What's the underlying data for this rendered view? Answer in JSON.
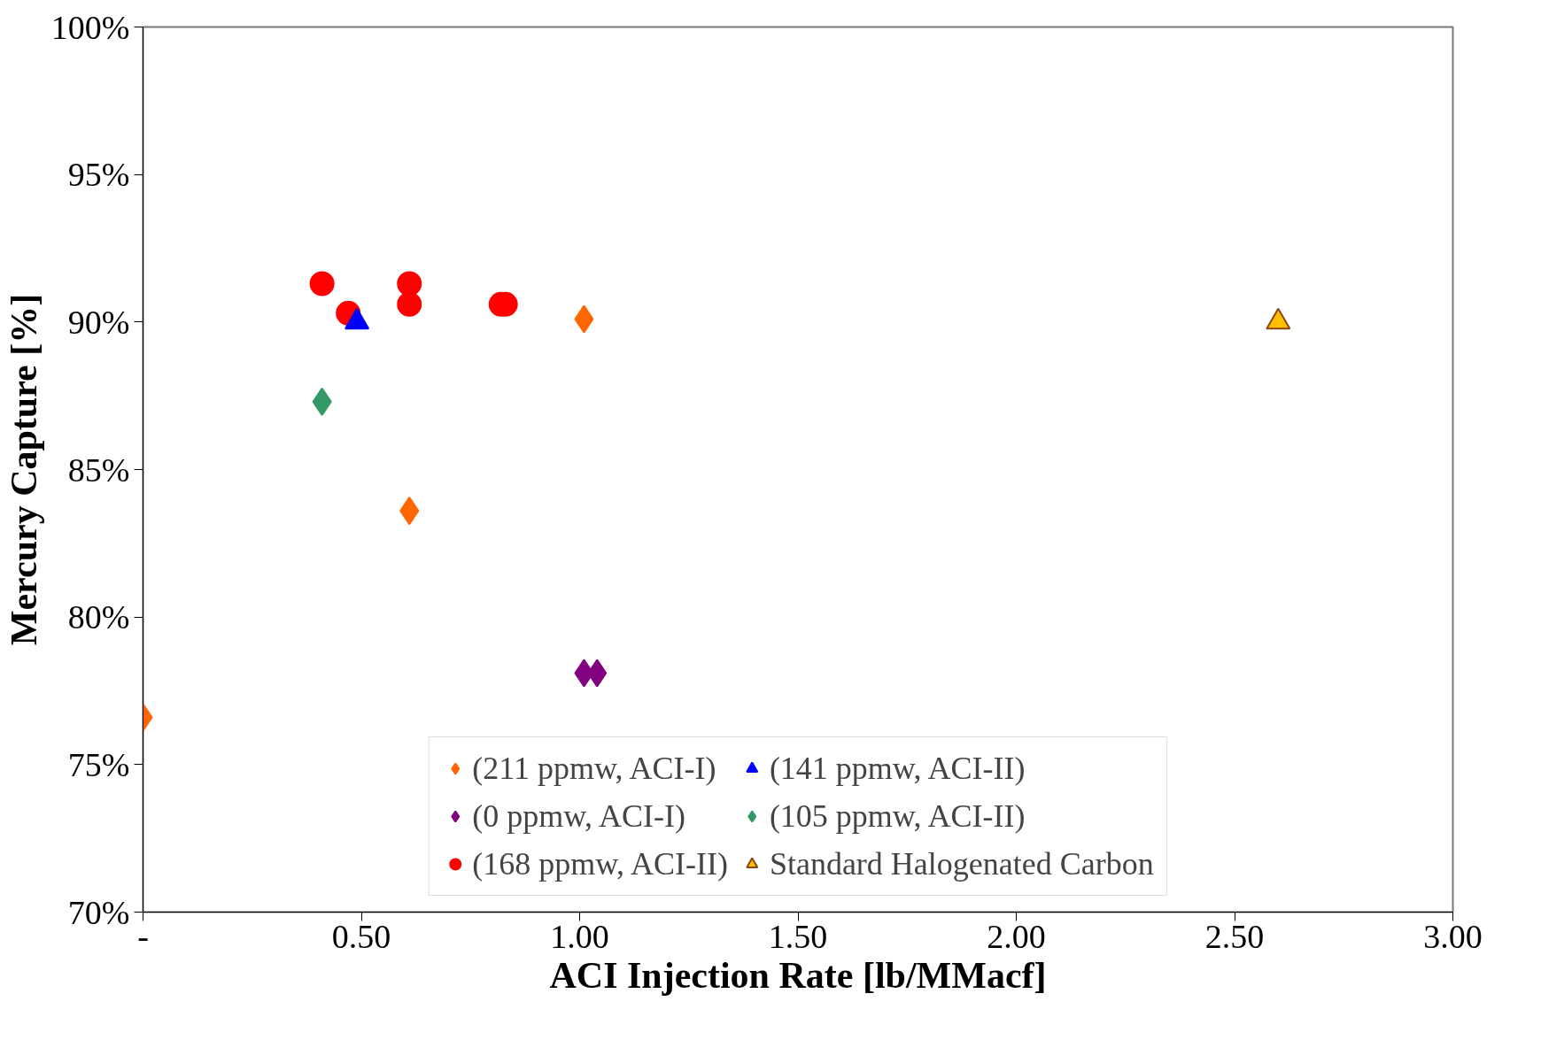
{
  "chart_data": {
    "type": "scatter",
    "xlabel": "ACI Injection Rate [lb/MMacf]",
    "ylabel": "Mercury Capture [%]",
    "xlim": [
      0,
      3
    ],
    "ylim": [
      70,
      100
    ],
    "xticks": [
      {
        "value": 0,
        "label": "-"
      },
      {
        "value": 0.5,
        "label": "0.50"
      },
      {
        "value": 1,
        "label": "1.00"
      },
      {
        "value": 1.5,
        "label": "1.50"
      },
      {
        "value": 2,
        "label": "2.00"
      },
      {
        "value": 2.5,
        "label": "2.50"
      },
      {
        "value": 3,
        "label": "3.00"
      }
    ],
    "yticks": [
      {
        "value": 70,
        "label": "70%"
      },
      {
        "value": 75,
        "label": "75%"
      },
      {
        "value": 80,
        "label": "80%"
      },
      {
        "value": 85,
        "label": "85%"
      },
      {
        "value": 90,
        "label": "90%"
      },
      {
        "value": 95,
        "label": "95%"
      },
      {
        "value": 100,
        "label": "100%"
      }
    ],
    "grid": false,
    "legend": "bottom",
    "series": [
      {
        "name": "(211 ppmw, ACI-I)",
        "color": "#ff6600",
        "marker": "diamond",
        "x": [
          0,
          0.61,
          1.01
        ],
        "values": [
          76.6,
          83.6,
          90.1
        ]
      },
      {
        "name": "(0 ppmw, ACI-I)",
        "color": "#800080",
        "marker": "diamond",
        "x": [
          1.01,
          1.04
        ],
        "values": [
          78.1,
          78.1
        ]
      },
      {
        "name": "(168 ppmw, ACI-II)",
        "color": "#ff0000",
        "marker": "circle",
        "x": [
          0.41,
          0.47,
          0.61,
          0.61,
          0.82,
          0.83
        ],
        "values": [
          91.3,
          90.3,
          91.3,
          90.6,
          90.6,
          90.6
        ]
      },
      {
        "name": "(141 ppmw, ACI-II)",
        "color": "#0000ff",
        "marker": "triangle",
        "x": [
          0.49
        ],
        "values": [
          90.0
        ]
      },
      {
        "name": "(105 ppmw, ACI-II)",
        "color": "#339966",
        "marker": "diamond",
        "x": [
          0.41
        ],
        "values": [
          87.3
        ]
      },
      {
        "name": "Standard Halogenated Carbon",
        "color": "#ffc000",
        "marker": "triangle",
        "x": [
          2.6
        ],
        "values": [
          90.0
        ]
      }
    ]
  }
}
